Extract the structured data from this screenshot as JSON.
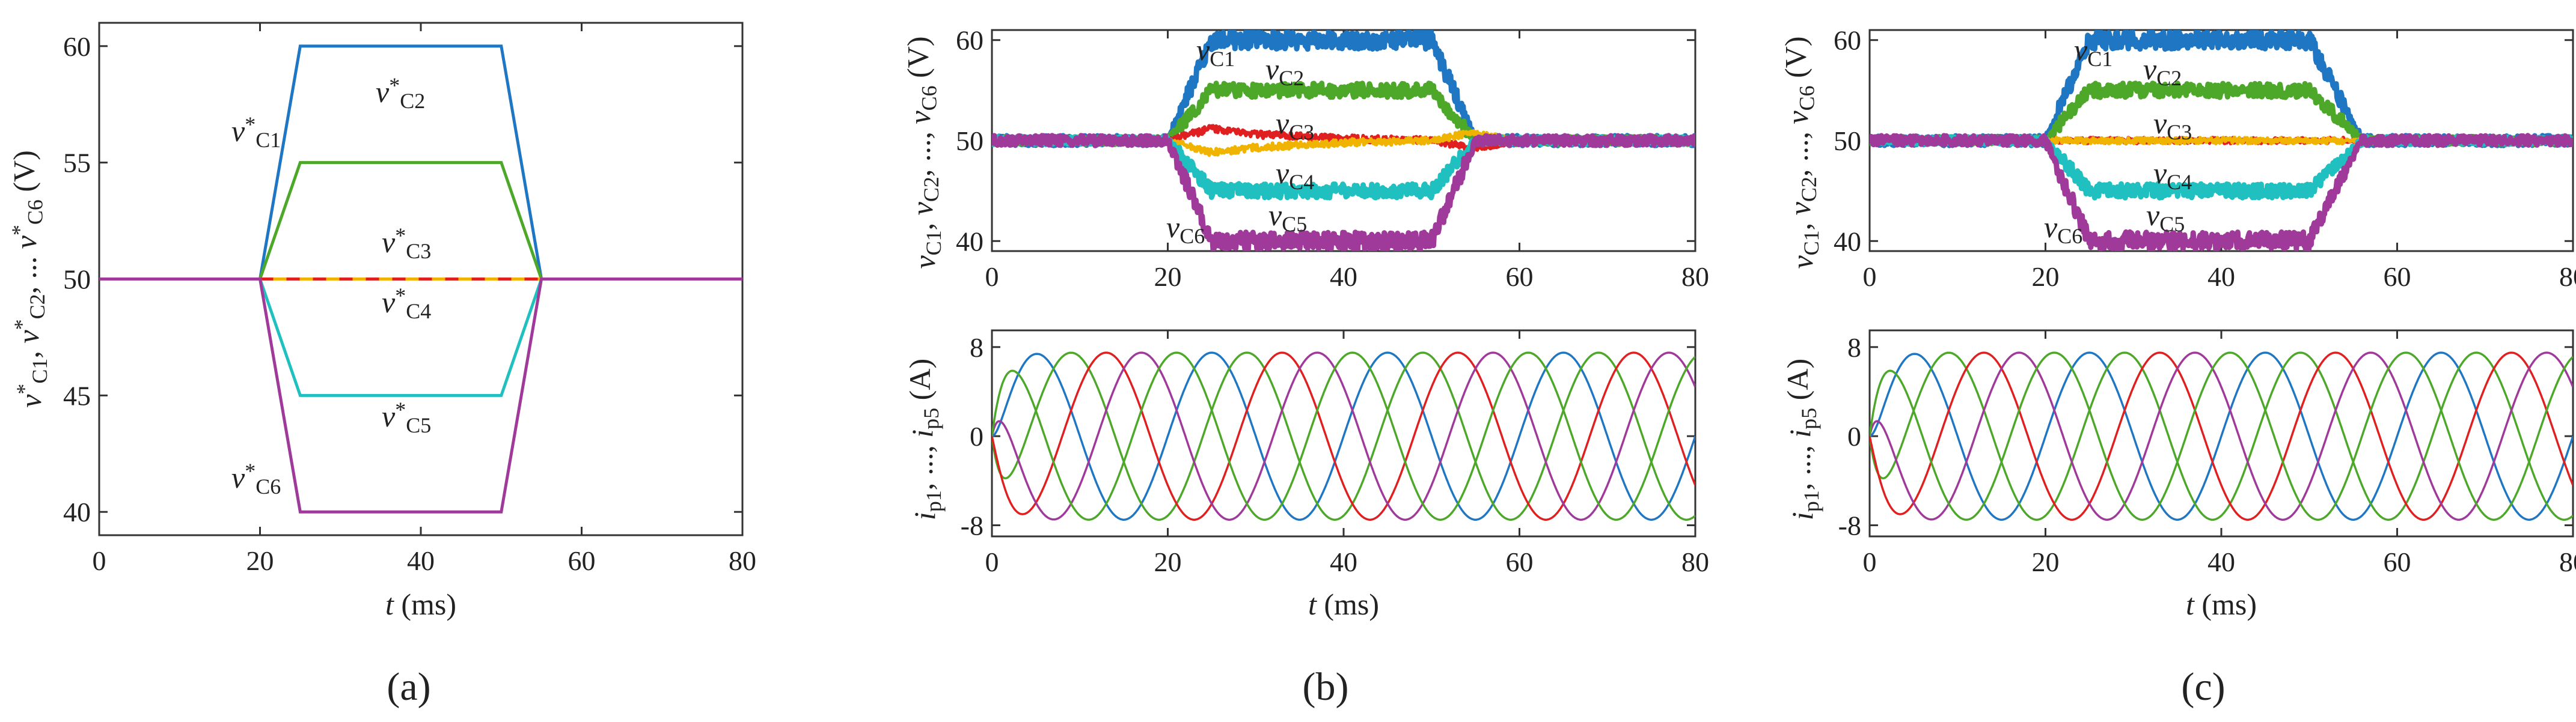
{
  "chart_data": [
    {
      "id": "a",
      "type": "line",
      "panel_label": "(a)",
      "xlabel": "t (ms)",
      "ylabel": "v*C1, v*C2, ... v*C6 (V)",
      "xlim": [
        0,
        80
      ],
      "ylim": [
        39,
        61
      ],
      "xticks": [
        0,
        20,
        40,
        60,
        80
      ],
      "yticks": [
        40,
        45,
        50,
        55,
        60
      ],
      "series": [
        {
          "name": "v*C1",
          "color": "#1f77c4",
          "x": [
            0,
            20,
            25,
            50,
            55,
            80
          ],
          "y": [
            50,
            50,
            60,
            60,
            50,
            50
          ]
        },
        {
          "name": "v*C2",
          "color": "#4da82a",
          "x": [
            0,
            20,
            25,
            50,
            55,
            80
          ],
          "y": [
            50,
            50,
            55,
            55,
            50,
            50
          ]
        },
        {
          "name": "v*C3",
          "color": "#e02020",
          "x": [
            20,
            55
          ],
          "y": [
            50,
            50
          ]
        },
        {
          "name": "v*C4",
          "color": "#f0b400",
          "x": [
            20,
            55
          ],
          "y": [
            50,
            50
          ]
        },
        {
          "name": "v*C5",
          "color": "#20c0c0",
          "x": [
            0,
            20,
            25,
            50,
            55,
            80
          ],
          "y": [
            50,
            50,
            45,
            45,
            50,
            50
          ]
        },
        {
          "name": "v*C6",
          "color": "#a03a9a",
          "x": [
            0,
            20,
            25,
            50,
            55,
            80
          ],
          "y": [
            50,
            50,
            40,
            40,
            50,
            50
          ]
        }
      ],
      "annotations": [
        {
          "series": 0,
          "text": "v*C1"
        },
        {
          "series": 1,
          "text": "v*C2"
        },
        {
          "series": 2,
          "text": "v*C3"
        },
        {
          "series": 3,
          "text": "v*C4"
        },
        {
          "series": 4,
          "text": "v*C5"
        },
        {
          "series": 5,
          "text": "v*C6"
        }
      ]
    },
    {
      "id": "b",
      "panel_label": "(b)",
      "xlabel": "t (ms)",
      "top": {
        "type": "line",
        "ylabel": "vC1, vC2, ..., vC6 (V)",
        "xlim": [
          0,
          80
        ],
        "ylim": [
          39,
          61
        ],
        "xticks": [
          0,
          20,
          40,
          60,
          80
        ],
        "yticks": [
          40,
          50,
          60
        ],
        "series": [
          {
            "name": "vC1",
            "color": "#1f77c4",
            "x": [
              0,
              20,
              25,
              50,
              55,
              80
            ],
            "y": [
              50,
              50,
              60,
              60,
              50,
              50
            ],
            "noise": 0.9
          },
          {
            "name": "vC2",
            "color": "#4da82a",
            "x": [
              0,
              20,
              25,
              50,
              55,
              80
            ],
            "y": [
              50,
              50,
              55,
              55,
              50,
              50
            ],
            "noise": 0.7
          },
          {
            "name": "vC3",
            "color": "#e02020",
            "x": [
              0,
              20,
              25,
              30,
              40,
              50,
              55,
              57,
              60,
              80
            ],
            "y": [
              50,
              50,
              51.2,
              50.6,
              50.2,
              50.0,
              49.2,
              49.4,
              50,
              50
            ],
            "noise": 0.35
          },
          {
            "name": "vC4",
            "color": "#f0b400",
            "x": [
              0,
              20,
              25,
              30,
              40,
              50,
              55,
              57,
              60,
              80
            ],
            "y": [
              50,
              50,
              48.8,
              49.3,
              49.8,
              50.0,
              50.8,
              50.5,
              50,
              50
            ],
            "noise": 0.35
          },
          {
            "name": "vC5",
            "color": "#20c0c0",
            "x": [
              0,
              20,
              25,
              50,
              55,
              80
            ],
            "y": [
              50,
              50,
              45,
              45,
              50,
              50
            ],
            "noise": 0.7
          },
          {
            "name": "vC6",
            "color": "#a03a9a",
            "x": [
              0,
              20,
              25,
              50,
              55,
              80
            ],
            "y": [
              50,
              50,
              40,
              40,
              50,
              50
            ],
            "noise": 0.9
          }
        ],
        "annotations": [
          {
            "series": 0,
            "text": "vC1"
          },
          {
            "series": 1,
            "text": "vC2"
          },
          {
            "series": 2,
            "text": "vC3"
          },
          {
            "series": 3,
            "text": "vC4"
          },
          {
            "series": 4,
            "text": "vC5"
          },
          {
            "series": 5,
            "text": "vC6"
          }
        ]
      },
      "bottom": {
        "type": "line",
        "ylabel": "ip1, ..., ip5 (A)",
        "xlim": [
          0,
          80
        ],
        "ylim": [
          -9,
          9.5
        ],
        "xticks": [
          0,
          20,
          40,
          60,
          80
        ],
        "yticks": [
          -8,
          0,
          8
        ],
        "amplitude": 7.5,
        "period_ms": 20,
        "series": [
          {
            "name": "ip1",
            "color": "#1f77c4",
            "phase_deg": 0
          },
          {
            "name": "ip2",
            "color": "#4da82a",
            "phase_deg": -72
          },
          {
            "name": "ip3",
            "color": "#e02020",
            "phase_deg": -144
          },
          {
            "name": "ip4",
            "color": "#a03a9a",
            "phase_deg": -216
          },
          {
            "name": "ip5",
            "color": "#4da82a",
            "phase_deg": -288
          }
        ]
      }
    },
    {
      "id": "c",
      "panel_label": "(c)",
      "xlabel": "t (ms)",
      "top": {
        "type": "line",
        "ylabel": "vC1, vC2, ..., vC6 (V)",
        "xlim": [
          0,
          80
        ],
        "ylim": [
          39,
          61
        ],
        "xticks": [
          0,
          20,
          40,
          60,
          80
        ],
        "yticks": [
          40,
          50,
          60
        ],
        "series": [
          {
            "name": "vC1",
            "color": "#1f77c4",
            "x": [
              0,
              20,
              25,
              50,
              56,
              80
            ],
            "y": [
              50,
              50,
              60,
              60,
              50,
              50
            ],
            "noise": 0.9
          },
          {
            "name": "vC2",
            "color": "#4da82a",
            "x": [
              0,
              20,
              25,
              50,
              56,
              80
            ],
            "y": [
              50,
              50,
              55,
              55,
              50,
              50
            ],
            "noise": 0.7
          },
          {
            "name": "vC3",
            "color": "#e02020",
            "x": [
              0,
              80
            ],
            "y": [
              50,
              50
            ],
            "noise": 0.3
          },
          {
            "name": "vC4",
            "color": "#f0b400",
            "x": [
              0,
              80
            ],
            "y": [
              50,
              50
            ],
            "noise": 0.3
          },
          {
            "name": "vC5",
            "color": "#20c0c0",
            "x": [
              0,
              20,
              25,
              50,
              56,
              80
            ],
            "y": [
              50,
              50,
              45,
              45,
              50,
              50
            ],
            "noise": 0.7
          },
          {
            "name": "vC6",
            "color": "#a03a9a",
            "x": [
              0,
              20,
              25,
              50,
              56,
              80
            ],
            "y": [
              50,
              50,
              40,
              40,
              50,
              50
            ],
            "noise": 0.9
          }
        ],
        "annotations": [
          {
            "series": 0,
            "text": "vC1"
          },
          {
            "series": 1,
            "text": "vC2"
          },
          {
            "series": 2,
            "text": "vC3"
          },
          {
            "series": 3,
            "text": "vC4"
          },
          {
            "series": 4,
            "text": "vC5"
          },
          {
            "series": 5,
            "text": "vC6"
          }
        ]
      },
      "bottom": {
        "type": "line",
        "ylabel": "ip1, ..., ip5 (A)",
        "xlim": [
          0,
          80
        ],
        "ylim": [
          -9,
          9.5
        ],
        "xticks": [
          0,
          20,
          40,
          60,
          80
        ],
        "yticks": [
          -8,
          0,
          8
        ],
        "amplitude": 7.5,
        "period_ms": 20,
        "series": [
          {
            "name": "ip1",
            "color": "#1f77c4",
            "phase_deg": 0
          },
          {
            "name": "ip2",
            "color": "#4da82a",
            "phase_deg": -72
          },
          {
            "name": "ip3",
            "color": "#e02020",
            "phase_deg": -144
          },
          {
            "name": "ip4",
            "color": "#a03a9a",
            "phase_deg": -216
          },
          {
            "name": "ip5",
            "color": "#4da82a",
            "phase_deg": -288
          }
        ]
      }
    }
  ]
}
